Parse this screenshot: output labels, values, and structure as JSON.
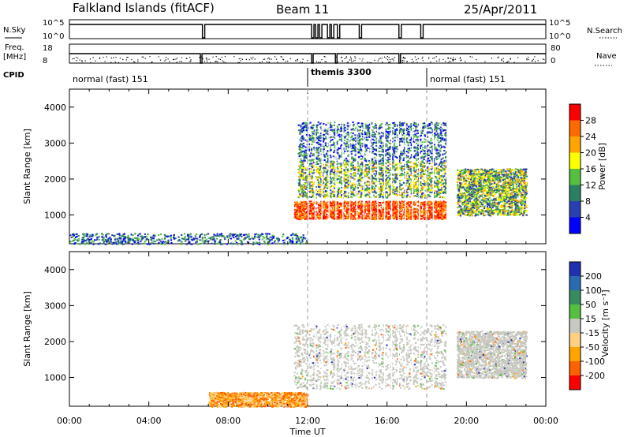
{
  "header": {
    "site": "Falkland Islands (fitACF)",
    "beam": "Beam 11",
    "date": "25/Apr/2011"
  },
  "summary_panels": {
    "nsky_label": "N.Sky",
    "nsky_ticks": [
      "10^5",
      "10^0"
    ],
    "nsearch_label": "N.Search",
    "freq_label": "Freq.",
    "freq_unit": "[MHz]",
    "freq_ticks": [
      "18",
      "8"
    ],
    "nave_label": "Nave",
    "nave_ticks": [
      "80",
      "0"
    ],
    "cpid_label": "CPID",
    "modes": [
      {
        "label": "normal (fast) 151",
        "start_hour": 0,
        "end_hour": 12
      },
      {
        "label": "themis 3300",
        "start_hour": 12,
        "end_hour": 18
      },
      {
        "label": "normal (fast) 151",
        "start_hour": 18,
        "end_hour": 24
      }
    ]
  },
  "chart_data": [
    {
      "type": "heatmap",
      "name": "power",
      "ylabel": "Slant Range [km]",
      "xlabel": "Time UT",
      "xlim": [
        0,
        24
      ],
      "ylim": [
        200,
        4500
      ],
      "yticks": [
        1000,
        2000,
        3000,
        4000
      ],
      "xtick_labels": [
        "00:00",
        "04:00",
        "08:00",
        "12:00",
        "16:00",
        "20:00",
        "00:00"
      ],
      "colorbar": {
        "label": "Power [dB]",
        "ticks": [
          "28",
          "24",
          "20",
          "16",
          "12",
          "8",
          "4"
        ],
        "colors": [
          "#ff0000",
          "#ff6a00",
          "#ffa500",
          "#ffff00",
          "#55c040",
          "#2a8060",
          "#2a3fb0",
          "#0000ff"
        ]
      },
      "regions": [
        {
          "t_start": 11.3,
          "t_end": 19.0,
          "r_min": 900,
          "r_max": 1400,
          "level": "high"
        },
        {
          "t_start": 11.5,
          "t_end": 19.0,
          "r_min": 1500,
          "r_max": 2500,
          "level": "medium"
        },
        {
          "t_start": 11.5,
          "t_end": 19.0,
          "r_min": 2500,
          "r_max": 3600,
          "level": "low"
        },
        {
          "t_start": 19.5,
          "t_end": 23.0,
          "r_min": 1000,
          "r_max": 2300,
          "level": "medium"
        },
        {
          "t_start": 0.0,
          "t_end": 12.0,
          "r_min": 200,
          "r_max": 500,
          "level": "low"
        }
      ]
    },
    {
      "type": "heatmap",
      "name": "velocity",
      "ylabel": "Slant Range [km]",
      "xlabel": "Time UT",
      "xlim": [
        0,
        24
      ],
      "ylim": [
        200,
        4500
      ],
      "yticks": [
        1000,
        2000,
        3000,
        4000
      ],
      "xtick_labels": [
        "00:00",
        "04:00",
        "08:00",
        "12:00",
        "16:00",
        "20:00",
        "00:00"
      ],
      "colorbar": {
        "label": "Velocity [m s⁻¹]",
        "ticks": [
          "200",
          "100",
          "50",
          "15",
          "-15",
          "-50",
          "-100",
          "-200"
        ],
        "colors": [
          "#2030b0",
          "#2a6ab0",
          "#3a8a60",
          "#55c040",
          "#c8c8c0",
          "#ffd080",
          "#ffa500",
          "#ff6000",
          "#ff0000"
        ]
      },
      "regions": [
        {
          "t_start": 11.3,
          "t_end": 19.0,
          "r_min": 700,
          "r_max": 2500,
          "level": "ground"
        },
        {
          "t_start": 19.5,
          "t_end": 23.0,
          "r_min": 1000,
          "r_max": 2300,
          "level": "ground"
        },
        {
          "t_start": 7.0,
          "t_end": 12.0,
          "r_min": 200,
          "r_max": 600,
          "level": "negative"
        }
      ]
    }
  ]
}
